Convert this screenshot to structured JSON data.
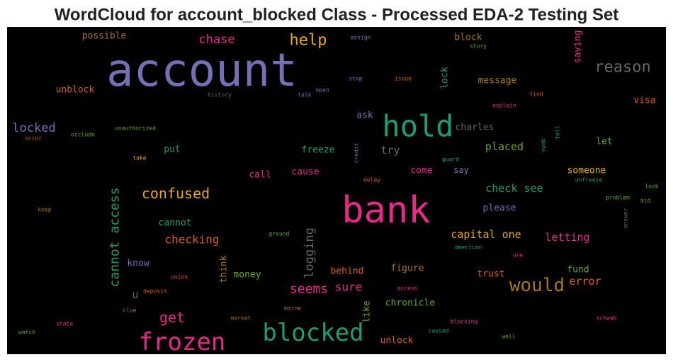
{
  "chart_data": {
    "type": "wordcloud",
    "title": "WordCloud for account_blocked Class - Processed EDA-2 Testing Set",
    "words": [
      {
        "text": "account",
        "color": "#7570b3"
      },
      {
        "text": "bank",
        "color": "#e7298a"
      },
      {
        "text": "hold",
        "color": "#1b9e77"
      },
      {
        "text": "blocked",
        "color": "#1b9e77"
      },
      {
        "text": "frozen",
        "color": "#e7298a"
      },
      {
        "text": "would",
        "color": "#a6761d"
      },
      {
        "text": "reason",
        "color": "#666666"
      },
      {
        "text": "help",
        "color": "#e6ab02"
      },
      {
        "text": "confused",
        "color": "#e6ab02"
      },
      {
        "text": "chase",
        "color": "#e7298a"
      },
      {
        "text": "locked",
        "color": "#7570b3"
      },
      {
        "text": "get",
        "color": "#e7298a"
      },
      {
        "text": "seems",
        "color": "#e7298a"
      },
      {
        "text": "sure",
        "color": "#e7298a"
      },
      {
        "text": "cannot access",
        "color": "#1b9e77"
      },
      {
        "text": "logging",
        "color": "#666666"
      },
      {
        "text": "checking",
        "color": "#d95f02"
      },
      {
        "text": "capital one",
        "color": "#e6ab02"
      },
      {
        "text": "check see",
        "color": "#1b9e77"
      },
      {
        "text": "placed",
        "color": "#66a61e"
      },
      {
        "text": "letting",
        "color": "#e7298a"
      },
      {
        "text": "error",
        "color": "#d95f02"
      },
      {
        "text": "fund",
        "color": "#66a61e"
      },
      {
        "text": "trust",
        "color": "#d95f02"
      },
      {
        "text": "figure",
        "color": "#a6761d"
      },
      {
        "text": "behind",
        "color": "#d95f02"
      },
      {
        "text": "chronicle",
        "color": "#66a61e"
      },
      {
        "text": "unlock",
        "color": "#d95f02"
      },
      {
        "text": "like",
        "color": "#66a61e"
      },
      {
        "text": "think",
        "color": "#a6761d"
      },
      {
        "text": "money",
        "color": "#66a61e"
      },
      {
        "text": "know",
        "color": "#7570b3"
      },
      {
        "text": "u",
        "color": "#666666"
      },
      {
        "text": "cannot",
        "color": "#1b9e77"
      },
      {
        "text": "put",
        "color": "#1b9e77"
      },
      {
        "text": "call",
        "color": "#e7298a"
      },
      {
        "text": "cause",
        "color": "#e7298a"
      },
      {
        "text": "freeze",
        "color": "#1b9e77"
      },
      {
        "text": "try",
        "color": "#666666"
      },
      {
        "text": "ask",
        "color": "#7570b3"
      },
      {
        "text": "charles",
        "color": "#666666"
      },
      {
        "text": "come",
        "color": "#e7298a"
      },
      {
        "text": "say",
        "color": "#7570b3"
      },
      {
        "text": "please",
        "color": "#7570b3"
      },
      {
        "text": "someone",
        "color": "#e6ab02"
      },
      {
        "text": "let",
        "color": "#66a61e"
      },
      {
        "text": "visa",
        "color": "#d95f02"
      },
      {
        "text": "message",
        "color": "#a6761d"
      },
      {
        "text": "lock",
        "color": "#1b9e77"
      },
      {
        "text": "block",
        "color": "#a6761d"
      },
      {
        "text": "saving",
        "color": "#e7298a"
      },
      {
        "text": "possible",
        "color": "#a6761d"
      },
      {
        "text": "unblock",
        "color": "#d95f02"
      },
      {
        "text": "assign",
        "color": "#7570b3"
      },
      {
        "text": "story",
        "color": "#66a61e"
      },
      {
        "text": "stop",
        "color": "#7570b3"
      },
      {
        "text": "issue",
        "color": "#d95f02"
      },
      {
        "text": "history",
        "color": "#666666"
      },
      {
        "text": "talk",
        "color": "#7570b3"
      },
      {
        "text": "open",
        "color": "#7570b3"
      },
      {
        "text": "find",
        "color": "#d95f02"
      },
      {
        "text": "explain",
        "color": "#e7298a"
      },
      {
        "text": "unauthorized",
        "color": "#66a61e"
      },
      {
        "text": "occlude",
        "color": "#66a61e"
      },
      {
        "text": "occur",
        "color": "#d95f02"
      },
      {
        "text": "take",
        "color": "#e6ab02"
      },
      {
        "text": "credit",
        "color": "#7570b3"
      },
      {
        "text": "guard",
        "color": "#1b9e77"
      },
      {
        "text": "swab",
        "color": "#1b9e77"
      },
      {
        "text": "tell",
        "color": "#1b9e77"
      },
      {
        "text": "delay",
        "color": "#d95f02"
      },
      {
        "text": "unfreeze",
        "color": "#1b9e77"
      },
      {
        "text": "look",
        "color": "#66a61e"
      },
      {
        "text": "problem",
        "color": "#66a61e"
      },
      {
        "text": "aid",
        "color": "#66a61e"
      },
      {
        "text": "keep",
        "color": "#a6761d"
      },
      {
        "text": "answer",
        "color": "#666666"
      },
      {
        "text": "ground",
        "color": "#66a61e"
      },
      {
        "text": "american",
        "color": "#1b9e77"
      },
      {
        "text": "use",
        "color": "#e7298a"
      },
      {
        "text": "union",
        "color": "#d95f02"
      },
      {
        "text": "deposit",
        "color": "#d95f02"
      },
      {
        "text": "access",
        "color": "#e7298a"
      },
      {
        "text": "clue",
        "color": "#a6761d"
      },
      {
        "text": "maine",
        "color": "#a6761d"
      },
      {
        "text": "market",
        "color": "#a6761d"
      },
      {
        "text": "state",
        "color": "#e7298a"
      },
      {
        "text": "watch",
        "color": "#66a61e"
      },
      {
        "text": "blocking",
        "color": "#e7298a"
      },
      {
        "text": "caused",
        "color": "#1b9e77"
      },
      {
        "text": "well",
        "color": "#66a61e"
      },
      {
        "text": "schwab",
        "color": "#e7298a"
      }
    ]
  }
}
